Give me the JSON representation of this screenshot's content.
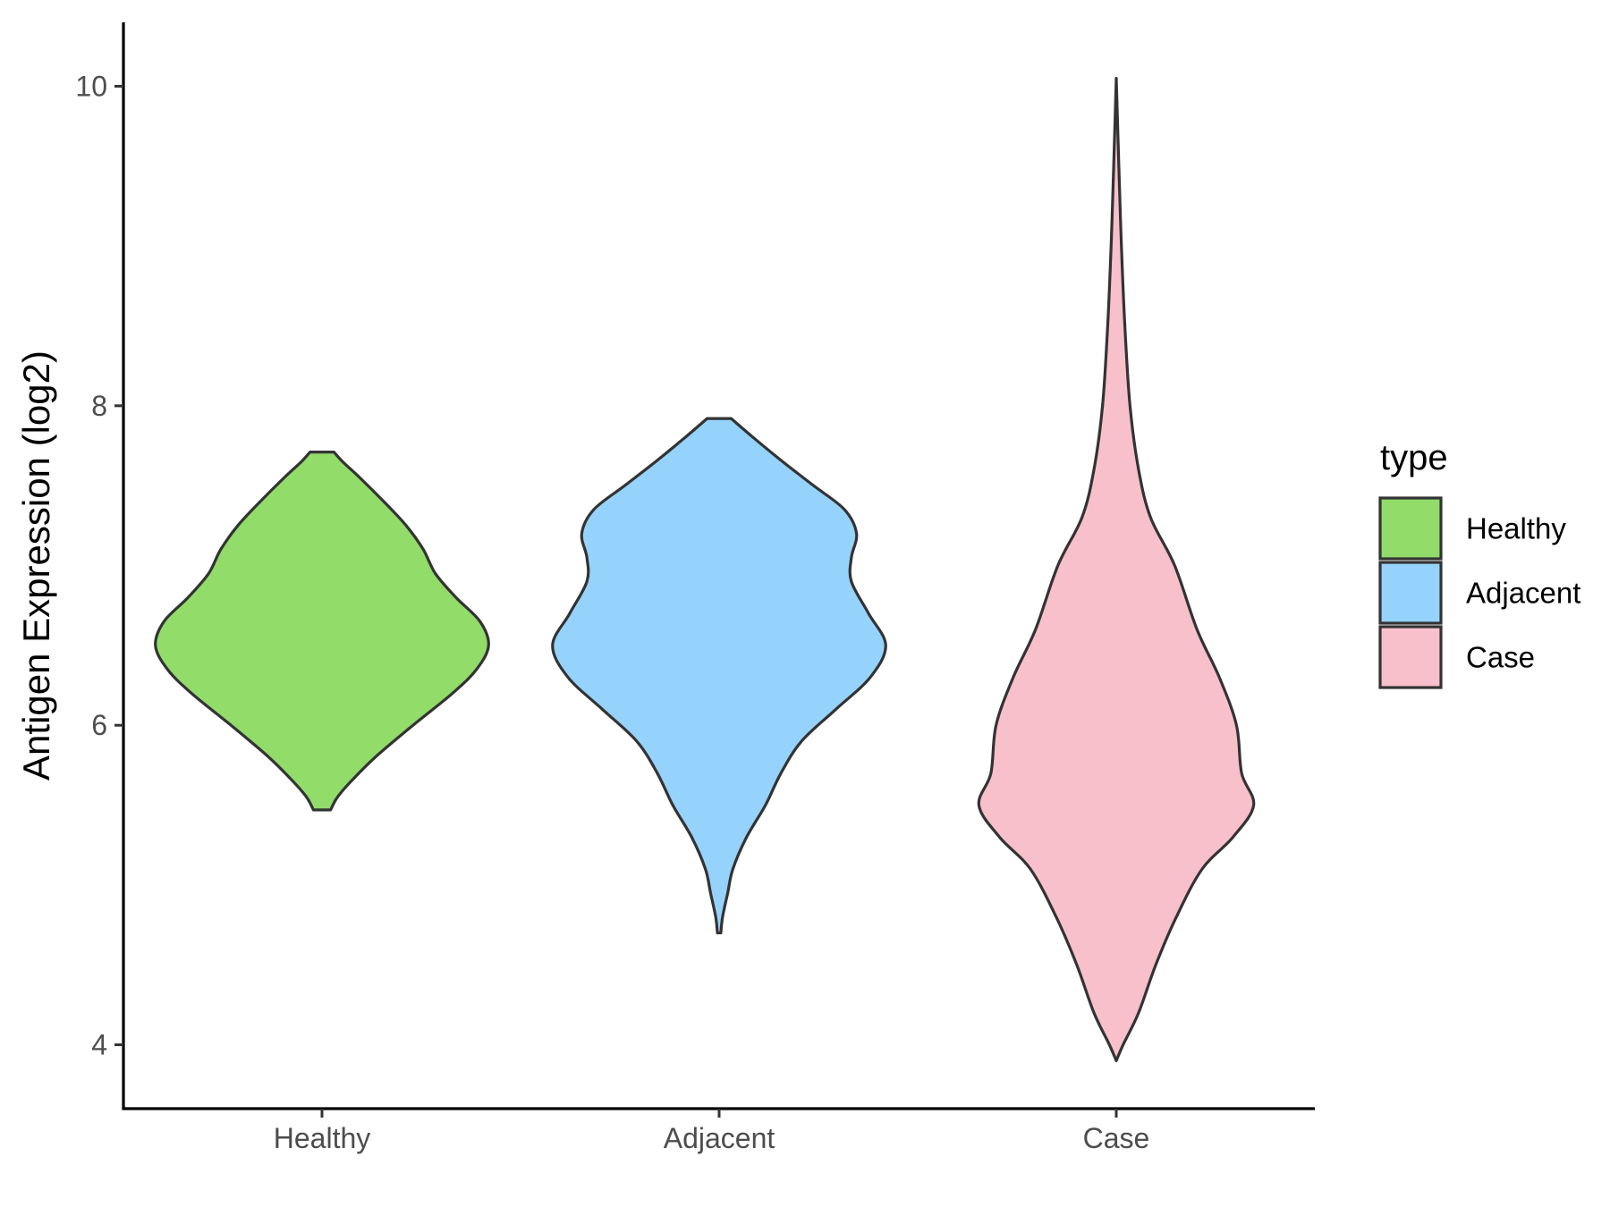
{
  "chart_data": {
    "type": "violin",
    "title": "",
    "xlabel": "",
    "ylabel": "Antigen Expression (log2)",
    "ylim": [
      3.6,
      10.4
    ],
    "y_ticks": [
      4,
      6,
      8,
      10
    ],
    "categories": [
      "Healthy",
      "Adjacent",
      "Case"
    ],
    "grid": false,
    "legend": {
      "title": "type",
      "position": "right",
      "entries": [
        {
          "label": "Healthy",
          "color": "#92dc6a"
        },
        {
          "label": "Adjacent",
          "color": "#95d3fd"
        },
        {
          "label": "Case",
          "color": "#f8c0cb"
        }
      ]
    },
    "outline_color": "#333333",
    "series": [
      {
        "name": "Healthy",
        "color": "#92dc6a",
        "min": 5.47,
        "max": 7.71,
        "profile": [
          [
            5.47,
            0.05
          ],
          [
            5.55,
            0.09
          ],
          [
            5.65,
            0.17
          ],
          [
            5.8,
            0.31
          ],
          [
            6.0,
            0.53
          ],
          [
            6.2,
            0.76
          ],
          [
            6.35,
            0.9
          ],
          [
            6.5,
            0.97
          ],
          [
            6.65,
            0.92
          ],
          [
            6.8,
            0.78
          ],
          [
            6.95,
            0.66
          ],
          [
            7.1,
            0.59
          ],
          [
            7.25,
            0.49
          ],
          [
            7.4,
            0.36
          ],
          [
            7.55,
            0.22
          ],
          [
            7.65,
            0.12
          ],
          [
            7.71,
            0.07
          ]
        ]
      },
      {
        "name": "Adjacent",
        "color": "#95d3fd",
        "min": 4.7,
        "max": 7.92,
        "profile": [
          [
            4.7,
            0.01
          ],
          [
            4.8,
            0.02
          ],
          [
            4.95,
            0.05
          ],
          [
            5.1,
            0.08
          ],
          [
            5.3,
            0.16
          ],
          [
            5.5,
            0.27
          ],
          [
            5.7,
            0.36
          ],
          [
            5.9,
            0.48
          ],
          [
            6.1,
            0.68
          ],
          [
            6.3,
            0.88
          ],
          [
            6.5,
            0.97
          ],
          [
            6.7,
            0.87
          ],
          [
            6.9,
            0.77
          ],
          [
            7.05,
            0.77
          ],
          [
            7.2,
            0.8
          ],
          [
            7.35,
            0.73
          ],
          [
            7.5,
            0.55
          ],
          [
            7.65,
            0.37
          ],
          [
            7.8,
            0.2
          ],
          [
            7.92,
            0.07
          ]
        ]
      },
      {
        "name": "Case",
        "color": "#f8c0cb",
        "min": 3.9,
        "max": 10.05,
        "profile": [
          [
            3.9,
            0.0
          ],
          [
            4.0,
            0.04
          ],
          [
            4.2,
            0.13
          ],
          [
            4.5,
            0.23
          ],
          [
            4.8,
            0.35
          ],
          [
            5.1,
            0.5
          ],
          [
            5.3,
            0.68
          ],
          [
            5.5,
            0.8
          ],
          [
            5.7,
            0.73
          ],
          [
            6.0,
            0.7
          ],
          [
            6.3,
            0.6
          ],
          [
            6.6,
            0.47
          ],
          [
            7.0,
            0.34
          ],
          [
            7.3,
            0.2
          ],
          [
            7.6,
            0.13
          ],
          [
            8.0,
            0.08
          ],
          [
            8.5,
            0.05
          ],
          [
            9.0,
            0.03
          ],
          [
            9.5,
            0.015
          ],
          [
            10.05,
            0.0
          ]
        ]
      }
    ]
  }
}
